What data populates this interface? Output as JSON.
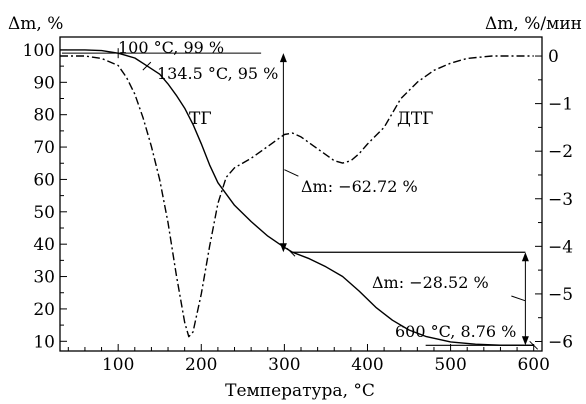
{
  "chart_data": {
    "type": "line",
    "xlabel": "Температура, °C",
    "ylabel_left": "Δm, %",
    "ylabel_right": "Δm, %/мин",
    "xlim": [
      30,
      610
    ],
    "ylim_left": [
      7,
      104
    ],
    "ylim_right": [
      -6.2,
      0.4
    ],
    "x_ticks": [
      100,
      200,
      300,
      400,
      500,
      600
    ],
    "y_left_ticks": [
      10,
      20,
      30,
      40,
      50,
      60,
      70,
      80,
      90,
      100
    ],
    "y_right_ticks": [
      0,
      -1,
      -2,
      -3,
      -4,
      -5,
      -6
    ],
    "grid": false,
    "series": [
      {
        "name": "ТГ",
        "axis": "left",
        "style": "solid",
        "x": [
          30,
          60,
          80,
          100,
          120,
          135,
          150,
          160,
          170,
          180,
          190,
          200,
          210,
          220,
          240,
          260,
          280,
          300,
          310,
          330,
          350,
          370,
          390,
          410,
          430,
          450,
          470,
          500,
          530,
          560,
          580,
          600
        ],
        "y": [
          100,
          100,
          99.8,
          99,
          97.5,
          95,
          92.5,
          89.5,
          86,
          82,
          77,
          71,
          64.5,
          59,
          52,
          47,
          42.5,
          39,
          37.5,
          35.5,
          33,
          30,
          25.5,
          20.5,
          16.5,
          13.5,
          11.5,
          9.8,
          9.1,
          8.8,
          8.8,
          8.76
        ]
      },
      {
        "name": "ДТГ",
        "axis": "right",
        "style": "dashdot",
        "x": [
          30,
          60,
          80,
          100,
          110,
          120,
          130,
          140,
          150,
          160,
          170,
          180,
          185,
          190,
          200,
          210,
          220,
          230,
          240,
          260,
          280,
          300,
          310,
          320,
          340,
          360,
          370,
          380,
          390,
          400,
          420,
          440,
          460,
          480,
          500,
          520,
          550,
          580,
          600
        ],
        "y": [
          0,
          0,
          -0.05,
          -0.2,
          -0.45,
          -0.8,
          -1.3,
          -1.9,
          -2.6,
          -3.5,
          -4.6,
          -5.6,
          -5.9,
          -5.8,
          -5.0,
          -4.0,
          -3.1,
          -2.55,
          -2.35,
          -2.15,
          -1.9,
          -1.65,
          -1.62,
          -1.7,
          -1.95,
          -2.2,
          -2.25,
          -2.2,
          -2.05,
          -1.85,
          -1.5,
          -0.9,
          -0.55,
          -0.3,
          -0.15,
          -0.05,
          0,
          0,
          0
        ]
      }
    ],
    "labels": {
      "tg": "ТГ",
      "dtg": "ДТГ"
    },
    "annotations": {
      "a1": "100 °C, 99 %",
      "a2": "134.5 °C, 95 %",
      "a3": "Δm: −62.72 %",
      "a4": "Δm: −28.52 %",
      "a5": "600 °C, 8.76 %"
    },
    "annotation_points": {
      "a1": [
        100,
        99
      ],
      "a2": [
        134.5,
        95
      ],
      "a3_span_x": 300,
      "a3_span_y": [
        99,
        37.5
      ],
      "a4_span_x": 590,
      "a4_span_y": [
        37.5,
        8.76
      ],
      "step1_y": 37.5,
      "step1_x": [
        308,
        590
      ],
      "final_y": 8.76,
      "final_x": [
        470,
        600
      ]
    }
  }
}
